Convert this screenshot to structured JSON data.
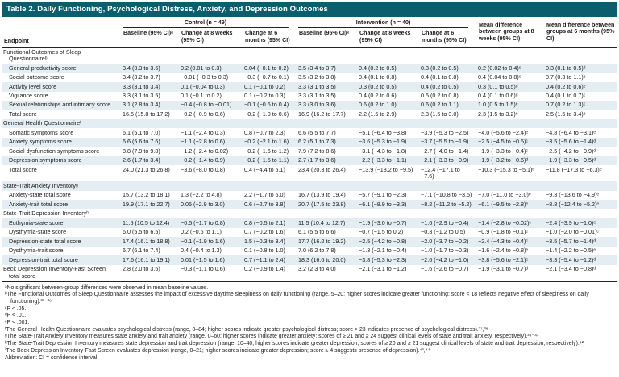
{
  "colors": {
    "header_bg": "#0b5f6d",
    "stripe": "#e3edf2"
  },
  "table": {
    "title": "Table 2. Daily Functioning, Psychological Distress, Anxiety, and Depression Outcomes",
    "header": {
      "endpoint": "Endpoint",
      "control_group": "Control (n = 49)",
      "intervention_group": "Intervention (n = 40)",
      "sub": [
        "Baseline (95% CI)ᵃ",
        "Change at 8 weeks (95% CI)",
        "Change at 6 months (95% CI)",
        "Baseline (95% CI)ᵃ",
        "Change at 8 weeks (95% CI)",
        "Change at 6 months (95% CI)"
      ],
      "mean_8wk": "Mean difference between groups at 8 weeks (95% CI)",
      "mean_6mo": "Mean difference between groups at 6 months (95% CI)"
    },
    "rows": [
      {
        "type": "section",
        "indent": false,
        "endpoint": "Functional Outcomes of Sleep Questionnaireᵇ"
      },
      {
        "type": "item",
        "indent": true,
        "endpoint": "General productivity score",
        "values": [
          "3.4 (3.3 to 3.6)",
          "0.2 (0.01 to 0.3)",
          "0.04 (−0.1 to 0.2)",
          "3.5 (3.4 to 3.7)",
          "0.4 (0.2 to 0.5)",
          "0.3 (0.2 to 0.5)",
          "0.2 (0.02 to 0.4)ᶜ",
          "0.3 (0.1 to 0.5)ᵈ"
        ]
      },
      {
        "type": "item",
        "indent": true,
        "endpoint": "Social outcome score",
        "values": [
          "3.4 (3.2 to 3.7)",
          "−0.01 (−0.3 to 0.3)",
          "−0.3 (−0.7 to 0.1)",
          "3.5 (3.2 to 3.8)",
          "0.4 (0.1 to 0.8)",
          "0.4 (0.1 to 0.8)",
          "0.4 (0.04 to 0.8)ᶜ",
          "0.7 (0.3 to 1.1)ᵉ"
        ]
      },
      {
        "type": "item",
        "indent": true,
        "endpoint": "Activity level score",
        "values": [
          "3.3 (3.1 to 3.4)",
          "0.1 (−0.04 to 0.3)",
          "0.1 (−0.1 to 0.2)",
          "3.3 (3.1 to 3.5)",
          "0.3 (0.2 to 0.5)",
          "0.4 (0.2 to 0.5)",
          "0.3 (0.1 to 0.5)ᵈ",
          "0.4 (0.2 to 0.6)ᵉ"
        ]
      },
      {
        "type": "item",
        "indent": true,
        "endpoint": "Vigilance score",
        "values": [
          "3.3 (3.1 to 3.5)",
          "0.1 (−0.1 to 0.2)",
          "0.1 (−0.2 to 0.3)",
          "3.3 (3.1 to 3.5)",
          "0.4 (0.2 to 0.6)",
          "0.5 (0.2 to 0.8)",
          "0.4 (0.1 to 0.6)ᵈ",
          "0.4 (0.1 to 0.7)ᶜ"
        ]
      },
      {
        "type": "item",
        "indent": true,
        "endpoint": "Sexual relationships and intimacy score",
        "values": [
          "3.1 (2.8 to 3.4)",
          "−0.4 (−0.8 to −0.01)",
          "−0.1 (−0.6 to 0.4)",
          "3.3 (3.0 to 3.6)",
          "0.6 (0.2 to 1.0)",
          "0.6 (0.2 to 1.1)",
          "1.0 (0.5 to 1.5)ᵉ",
          "0.7 (0.2 to 1.3)ᶜ"
        ]
      },
      {
        "type": "item",
        "indent": true,
        "endpoint": "Total score",
        "values": [
          "16.5 (15.8 to 17.2)",
          "−0.2 (−0.9 to 0.6)",
          "−0.2 (−1.0 to 0.6)",
          "16.9 (16.2 to 17.7)",
          "2.2 (1.5 to 2.9)",
          "2.3 (1.5 to 3.0)",
          "2.3 (1.5 to 3.2)ᵉ",
          "2.5 (1.5 to 3.4)ᵉ"
        ]
      },
      {
        "type": "section",
        "indent": false,
        "endpoint": "General Health Questionnaireᶠ"
      },
      {
        "type": "item",
        "indent": true,
        "endpoint": "Somatic symptoms score",
        "values": [
          "6.1 (5.1 to 7.0)",
          "−1.1 (−2.4 to 0.3)",
          "0.8 (−0.7 to 2.3)",
          "6.6 (5.5 to 7.7)",
          "−5.1 (−6.4 to −3.8)",
          "−3.9 (−5.3 to −2.5)",
          "−4.0 (−5.6 to −2.4)ᵉ",
          "−4.8 (−6.4 to −3.1)ᵉ"
        ]
      },
      {
        "type": "item",
        "indent": true,
        "endpoint": "Anxiety symptoms score",
        "values": [
          "6.6 (5.6 to 7.6)",
          "−1.1 (−2.8 to 0.6)",
          "−0.2 (−2.1 to 1.6)",
          "6.2 (5.1 to 7.3)",
          "−3.6 (−5.3 to −1.9)",
          "−3.7 (−5.5 to −1.9)",
          "−2.5 (−4.5 to −0.5)ᶜ",
          "−3.5 (−5.6 to −1.4)ᵈ"
        ]
      },
      {
        "type": "item",
        "indent": true,
        "endpoint": "Social dysfunction symptoms score",
        "values": [
          "8.8 (7.9 to 9.8)",
          "−1.2 (−2.4 to 0.02)",
          "−0.2 (−1.6 to 1.2)",
          "7.9 (7.2 to 8.6)",
          "−3.1 (−4.3 to −1.8)",
          "−2.7 (−4.0 to −1.4)",
          "−1.9 (−3.3 to −0.4)ᶜ",
          "−2.5 (−4.2 to −0.9)ᵈ"
        ]
      },
      {
        "type": "item",
        "indent": true,
        "endpoint": "Depression symptoms score",
        "values": [
          "2.6 (1.7 to 3.4)",
          "−0.2 (−1.4 to 0.9)",
          "−0.2 (−1.5 to 1.1)",
          "2.7 (1.7 to 3.6)",
          "−2.2 (−3.3 to −1.1)",
          "−2.1 (−3.3 to −0.9)",
          "−1.9 (−3.2 to −0.6)ᵈ",
          "−1.9 (−3.3 to −0.5)ᵈ"
        ]
      },
      {
        "type": "item",
        "indent": true,
        "endpoint": "Total score",
        "values": [
          "24.0 (21.3 to 26.8)",
          "−3.6 (−8.0 to 0.8)",
          "0.4 (−4.4 to 5.1)",
          "23.4 (20.3 to 26.4)",
          "−13.9 (−18.2 to −9.5)",
          "−12.4 (−17.1 to −7.6)",
          "−10.3 (−15.3 to −5.1)ᵉ",
          "−11.8 (−17.3 to −6.3)ᵉ"
        ]
      },
      {
        "type": "section",
        "indent": false,
        "endpoint": "State-Trait Anxiety Inventoryᵍ"
      },
      {
        "type": "item",
        "indent": true,
        "endpoint": "Anxiety-state total score",
        "values": [
          "15.7 (13.2 to 18.1)",
          "1.3 (−2.2 to 4.8)",
          "2.2 (−1.7 to 6.0)",
          "16.7 (13.9 to 19.4)",
          "−5.7 (−9.1 to −2.3)",
          "−7.1 (−10.8 to −3.5)",
          "−7.0 (−11.0 to −3.0)ᵉ",
          "−9.3 (−13.6 to −4.9)ᵉ"
        ]
      },
      {
        "type": "item",
        "indent": true,
        "endpoint": "Anxiety-trait total score",
        "values": [
          "19.9 (17.1 to 22.7)",
          "0.05 (−2.9 to 3.0)",
          "0.6 (−2.7 to 3.8)",
          "20.7 (17.5 to 23.8)",
          "−6.1 (−8.9 to −3.3)",
          "−8.2 (−11.2 to −5.2)",
          "−6.1 (−9.5 to −2.8)ᵉ",
          "−8.8 (−12.4 to −5.2)ᵉ"
        ]
      },
      {
        "type": "section",
        "indent": false,
        "endpoint": "State-Trait Depression Inventoryʰ"
      },
      {
        "type": "item",
        "indent": true,
        "endpoint": "Euthymia-state score",
        "values": [
          "11.5 (10.5 to 12.4)",
          "−0.5 (−1.7 to 0.8)",
          "0.8 (−0.5 to 2.1)",
          "11.5 (10.4 to 12.7)",
          "−1.9 (−3.0 to −0.7)",
          "−1.6 (−2.9 to −0.4)",
          "−1.4 (−2.8 to −0.02)ᶜ",
          "−2.4 (−3.9 to −1.0)ᵉ"
        ]
      },
      {
        "type": "item",
        "indent": true,
        "endpoint": "Dysthymia-state score",
        "values": [
          "6.0 (5.5 to 6.5)",
          "0.2 (−0.6 to 1.1)",
          "0.7 (−0.2 to 1.6)",
          "6.1 (5.5 to 6.6)",
          "−0.7 (−1.5 to 0.2)",
          "−0.3 (−1.2 to 0.5)",
          "−0.9 (−1.8 to −0.1)ᶜ",
          "−1.0 (−2.0 to −0.01)ᶜ"
        ]
      },
      {
        "type": "item",
        "indent": true,
        "endpoint": "Depression-state total score",
        "values": [
          "17.4 (16.1 to 18.8)",
          "−0.1 (−1.9 to 1.6)",
          "1.5 (−0.3 to 3.4)",
          "17.7 (16.2 to 19.2)",
          "−2.5 (−4.2 to −0.8)",
          "−2.0 (−3.7 to −0.2)",
          "−2.4 (−4.3 to −0.4)ᶜ",
          "−3.5 (−5.7 to −1.4)ᵈ"
        ]
      },
      {
        "type": "item",
        "indent": true,
        "endpoint": "Dysthymia-trait score",
        "values": [
          "6.7 (6.1 to 7.4)",
          "0.4 (−0.4 to 1.3)",
          "0.1 (−0.8 to 1.0)",
          "7.0 (6.2 to 7.8)",
          "−1.3 (−2.1 to −0.4)",
          "−1.0 (−1.7 to −0.3)",
          "−1.6 (−2.4 to −0.8)ᵉ",
          "−1.4 (−2.2 to −0.5)ᵉ"
        ]
      },
      {
        "type": "item",
        "indent": true,
        "endpoint": "Depression-trait total score",
        "values": [
          "17.6 (16.1 to 19.1)",
          "0.01 (−1.5 to 1.6)",
          "0.7 (−1.1 to 2.4)",
          "18.3 (16.6 to 20.0)",
          "−3.8 (−5.3 to −2.3)",
          "−2.6 (−4.2 to −1.0)",
          "−3.8 (−5.6 to −2.1)ᵉ",
          "−3.3 (−5.4 to −1.2)ᵈ"
        ]
      },
      {
        "type": "item",
        "indent": false,
        "endpoint": "Beck Depression Inventory-Fast Screenⁱ total score",
        "values": [
          "2.8 (2.0 to 3.5)",
          "−0.3 (−1.1 to 0.6)",
          "0.2 (−0.9 to 1.4)",
          "3.2 (2.3 to 4.0)",
          "−2.1 (−3.1 to −1.2)",
          "−1.6 (−2.6 to −0.7)",
          "−1.9 (−3.1 to −0.7)ᵈ",
          "−2.1 (−3.4 to −0.8)ᵈ"
        ]
      }
    ]
  },
  "footnotes": [
    "ᵃNo significant between-group differences were observed in mean baseline values.",
    "ᵇThe Functional Outcomes of Sleep Questionnaire assesses the impact of excessive daytime sleepiness on daily functioning (range, 5–20; higher scores indicate greater functioning; score < 18 reflects negative effect of sleepiness on daily functioning).³³⁻³⁶",
    "ᶜP < .05.",
    "ᵈP < .01.",
    "ᵉP < .001.",
    "ᶠThe General Health Questionnaire evaluates psychological distress (range, 0–84; higher scores indicate greater psychological distress; score > 23 indicates presence of psychological distress).³⁷,³⁸",
    "ᵍThe State-Trait Anxiety Inventory measures state anxiety and trait anxiety (range, 0–60; higher scores indicate greater anxiety; scores of ≥ 21 and ≥ 24 suggest clinical levels of state and trait anxiety, respectively).³⁹⁻⁴¹",
    "ʰThe State-Trait Depression Inventory measures state depression and trait depression (range, 10–40; higher scores indicate greater depression; scores of ≥ 20 and ≥ 21 suggest clinical levels of state and trait depression, respectively).⁴²",
    "ⁱThe Beck Depression Inventory-Fast Screen evaluates depression (range, 0–21; higher scores indicate greater depression; score ≥ 4 suggests presence of depression).⁴³,⁴⁴",
    "Abbreviation: CI = confidence interval."
  ]
}
